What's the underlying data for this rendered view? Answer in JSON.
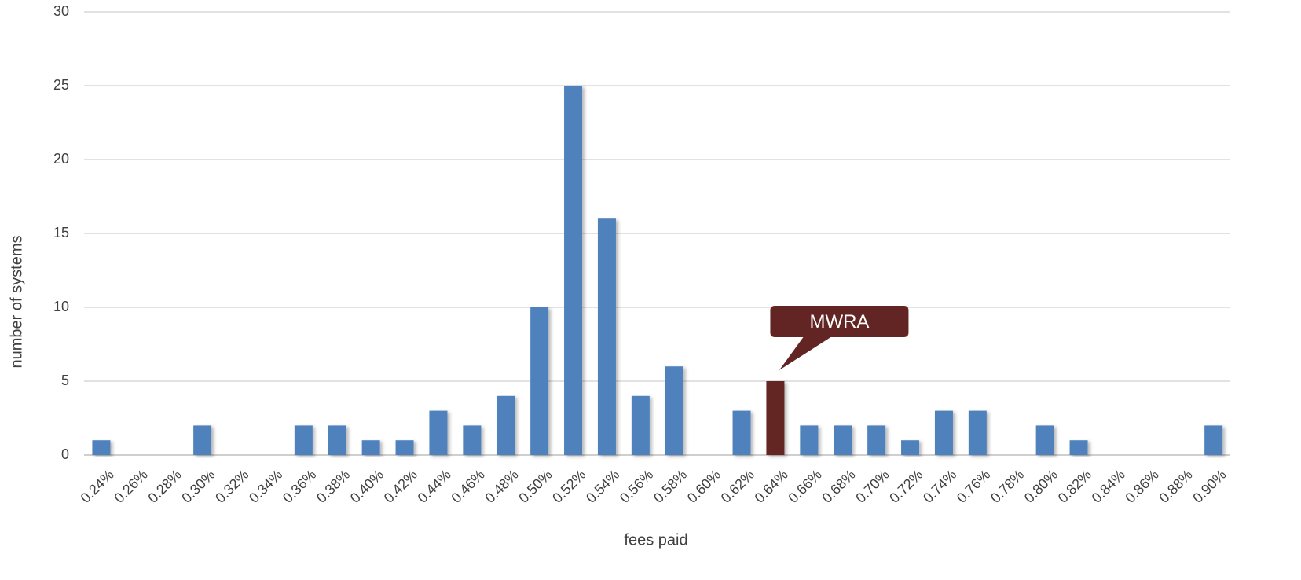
{
  "chart_data": {
    "type": "bar",
    "xlabel": "fees paid",
    "ylabel": "number of systems",
    "ylim": [
      0,
      30
    ],
    "yticks": [
      0,
      5,
      10,
      15,
      20,
      25,
      30
    ],
    "grid": true,
    "categories": [
      "0.24%",
      "0.26%",
      "0.28%",
      "0.30%",
      "0.32%",
      "0.34%",
      "0.36%",
      "0.38%",
      "0.40%",
      "0.42%",
      "0.44%",
      "0.46%",
      "0.48%",
      "0.50%",
      "0.52%",
      "0.54%",
      "0.56%",
      "0.58%",
      "0.60%",
      "0.62%",
      "0.64%",
      "0.66%",
      "0.68%",
      "0.70%",
      "0.72%",
      "0.74%",
      "0.76%",
      "0.78%",
      "0.80%",
      "0.82%",
      "0.84%",
      "0.86%",
      "0.88%",
      "0.90%"
    ],
    "values": [
      1,
      0,
      0,
      2,
      0,
      0,
      2,
      2,
      1,
      1,
      3,
      2,
      4,
      10,
      25,
      16,
      4,
      6,
      0,
      3,
      5,
      2,
      2,
      2,
      1,
      3,
      3,
      0,
      2,
      1,
      0,
      0,
      0,
      2
    ],
    "highlight": {
      "category": "0.64%",
      "label": "MWRA"
    },
    "colors": {
      "bar": "#4f81bd",
      "highlight": "#632523",
      "grid": "#d9d9d9",
      "text": "#404040"
    }
  }
}
